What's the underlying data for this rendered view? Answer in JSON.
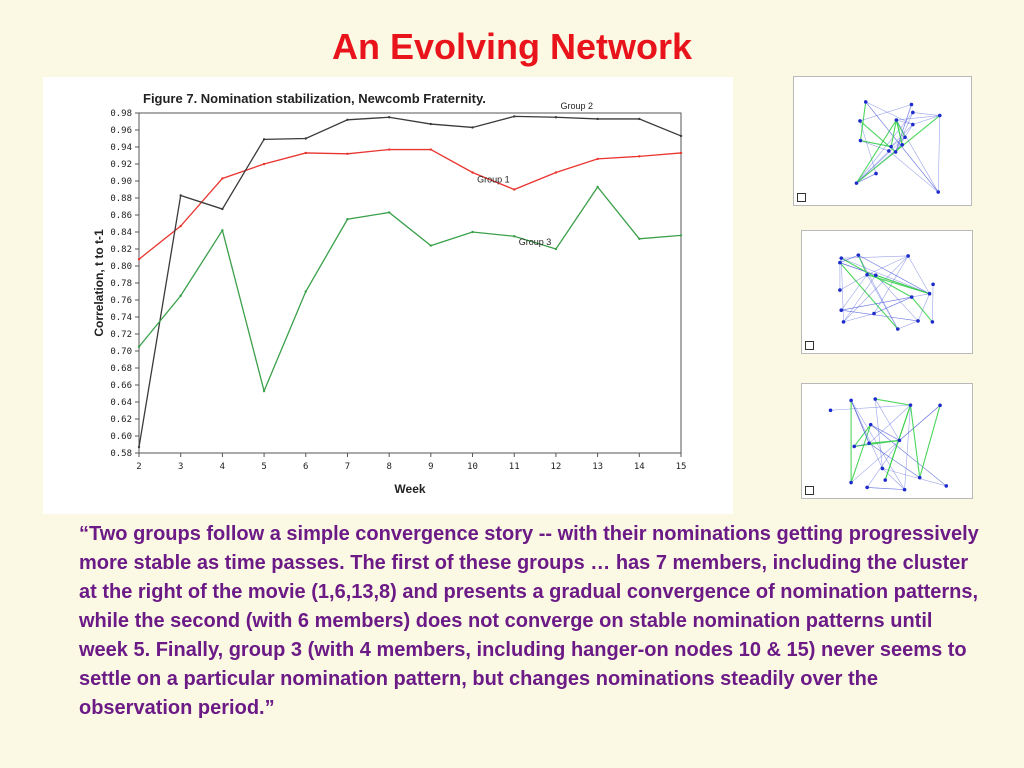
{
  "slide": {
    "title": "An Evolving Network",
    "quote": "“Two groups follow a simple convergence story -- with their nominations getting progressively more stable as time passes. The first of these groups … has 7 members, including the cluster at the right of the movie (1,6,13,8) and presents a gradual convergence of nomination patterns, while the second (with 6 members) does not converge on stable nomination patterns until week 5. Finally, group 3 (with 4 members, including hanger-on nodes 10 & 15) never seems to settle on a particular nomination pattern, but changes nominations steadily over the observation period.”"
  },
  "chart_data": {
    "type": "line",
    "title": "Figure 7. Nomination stabilization, Newcomb Fraternity.",
    "xlabel": "Week",
    "ylabel": "Correlation, t to t-1",
    "x": [
      2,
      3,
      4,
      5,
      6,
      7,
      8,
      9,
      10,
      11,
      12,
      13,
      14,
      15
    ],
    "xlim": [
      2,
      15
    ],
    "ylim": [
      0.58,
      0.98
    ],
    "yticks": [
      "0.58",
      "0.60",
      "0.62",
      "0.64",
      "0.66",
      "0.68",
      "0.70",
      "0.72",
      "0.74",
      "0.76",
      "0.78",
      "0.80",
      "0.82",
      "0.84",
      "0.86",
      "0.88",
      "0.90",
      "0.92",
      "0.94",
      "0.96",
      "0.98"
    ],
    "grid": false,
    "series": [
      {
        "name": "Group 1",
        "color": "#e8352f",
        "values": [
          0.808,
          0.847,
          0.903,
          0.92,
          0.933,
          0.932,
          0.937,
          0.937,
          0.91,
          0.89,
          0.91,
          0.926,
          0.929,
          0.933
        ]
      },
      {
        "name": "Group 2",
        "color": "#3a3a3a",
        "values": [
          0.587,
          0.883,
          0.867,
          0.949,
          0.95,
          0.972,
          0.975,
          0.967,
          0.963,
          0.976,
          0.975,
          0.973,
          0.973,
          0.953
        ]
      },
      {
        "name": "Group 3",
        "color": "#3aa04a",
        "values": [
          0.705,
          0.765,
          0.842,
          0.653,
          0.77,
          0.855,
          0.863,
          0.824,
          0.84,
          0.835,
          0.82,
          0.893,
          0.832,
          0.836
        ]
      }
    ]
  },
  "thumbnails": [
    {
      "name": "network-snapshot-1",
      "edge_color": "#4a59d8",
      "highlight_color": "#38d14a",
      "node_color": "#1d2bcc"
    },
    {
      "name": "network-snapshot-2",
      "edge_color": "#4a59d8",
      "highlight_color": "#38d14a",
      "node_color": "#1d2bcc"
    },
    {
      "name": "network-snapshot-3",
      "edge_color": "#4a59d8",
      "highlight_color": "#38d14a",
      "node_color": "#1d2bcc"
    }
  ]
}
